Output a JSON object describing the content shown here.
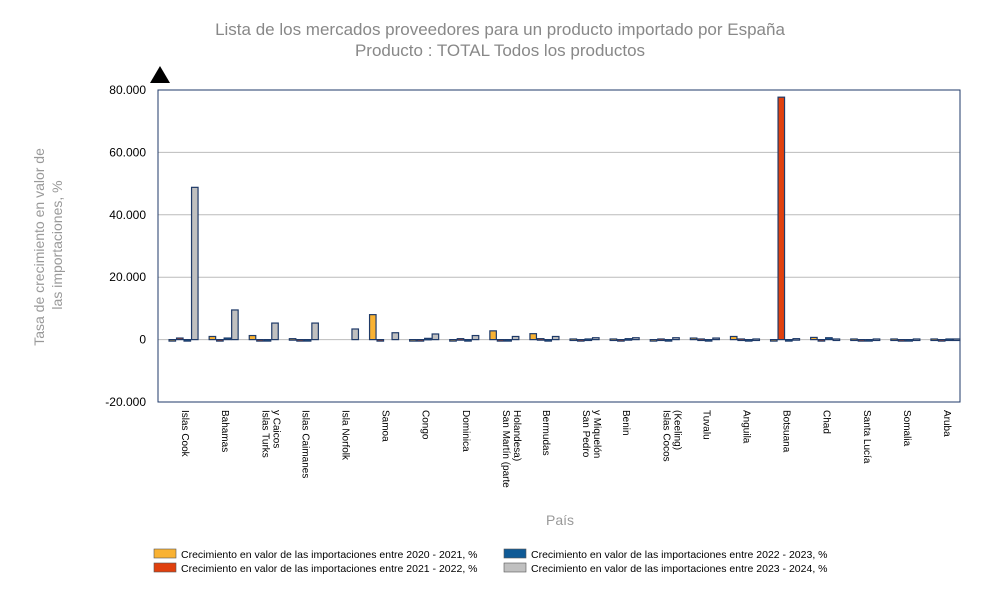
{
  "chart_data": {
    "type": "bar",
    "title": "Lista de los mercados proveedores para un producto importado por España",
    "subtitle": "Producto : TOTAL Todos los productos",
    "xlabel": "País",
    "ylabel": "Tasa de crecimiento en valor de las importaciones, %",
    "ylim": [
      -20000,
      80000
    ],
    "yticks": [
      "-20.000",
      "0",
      "20.000",
      "40.000",
      "60.000",
      "80.000"
    ],
    "ytick_values": [
      -20000,
      0,
      20000,
      40000,
      60000,
      80000
    ],
    "grid": true,
    "legend_position": "bottom",
    "categories": [
      [
        "Islas Cook"
      ],
      [
        "Bahamas"
      ],
      [
        "Islas Turks",
        "y Caicos"
      ],
      [
        "Islas Caimanes"
      ],
      [
        "Isla Norfolk"
      ],
      [
        "Samoa"
      ],
      [
        "Congo"
      ],
      [
        "Dominica"
      ],
      [
        "San Martín (parte",
        "Holandesa)"
      ],
      [
        "Bermudas"
      ],
      [
        "San Pedro",
        "y Miquelón"
      ],
      [
        "Benin"
      ],
      [
        "Islas Cocos",
        "(Keeling)"
      ],
      [
        "Tuvalu"
      ],
      [
        "Anguila"
      ],
      [
        "Botsuana"
      ],
      [
        "Chad"
      ],
      [
        "Santa Lucía"
      ],
      [
        "Somalia"
      ],
      [
        "Aruba"
      ]
    ],
    "series": [
      {
        "name": "Crecimiento en valor de las importaciones entre 2020 - 2021, %",
        "color": "#F9B233",
        "values": [
          -300,
          1000,
          1300,
          300,
          null,
          8000,
          -200,
          -200,
          2800,
          1900,
          200,
          200,
          -200,
          500,
          1000,
          -200,
          700,
          200,
          200,
          200
        ]
      },
      {
        "name": "Crecimiento en valor de las importaciones entre 2021 - 2022, %",
        "color": "#E0400E",
        "values": [
          500,
          -300,
          -200,
          -200,
          null,
          -300,
          -200,
          300,
          -200,
          300,
          -300,
          -200,
          200,
          200,
          200,
          77700,
          -300,
          -300,
          -300,
          -300
        ]
      },
      {
        "name": "Crecimiento en valor de las importaciones entre 2022 - 2023, %",
        "color": "#0F5A96",
        "values": [
          -300,
          500,
          -200,
          -200,
          null,
          null,
          400,
          -300,
          -200,
          -300,
          200,
          300,
          -200,
          -300,
          -200,
          -200,
          600,
          -300,
          -300,
          200
        ]
      },
      {
        "name": "Crecimiento en valor de las importaciones entre 2023 - 2024, %",
        "color": "#C0C0C0",
        "values": [
          48800,
          9500,
          5300,
          5300,
          3400,
          2200,
          1800,
          1300,
          1000,
          1000,
          600,
          600,
          600,
          500,
          200,
          300,
          200,
          200,
          200,
          200
        ]
      }
    ]
  }
}
